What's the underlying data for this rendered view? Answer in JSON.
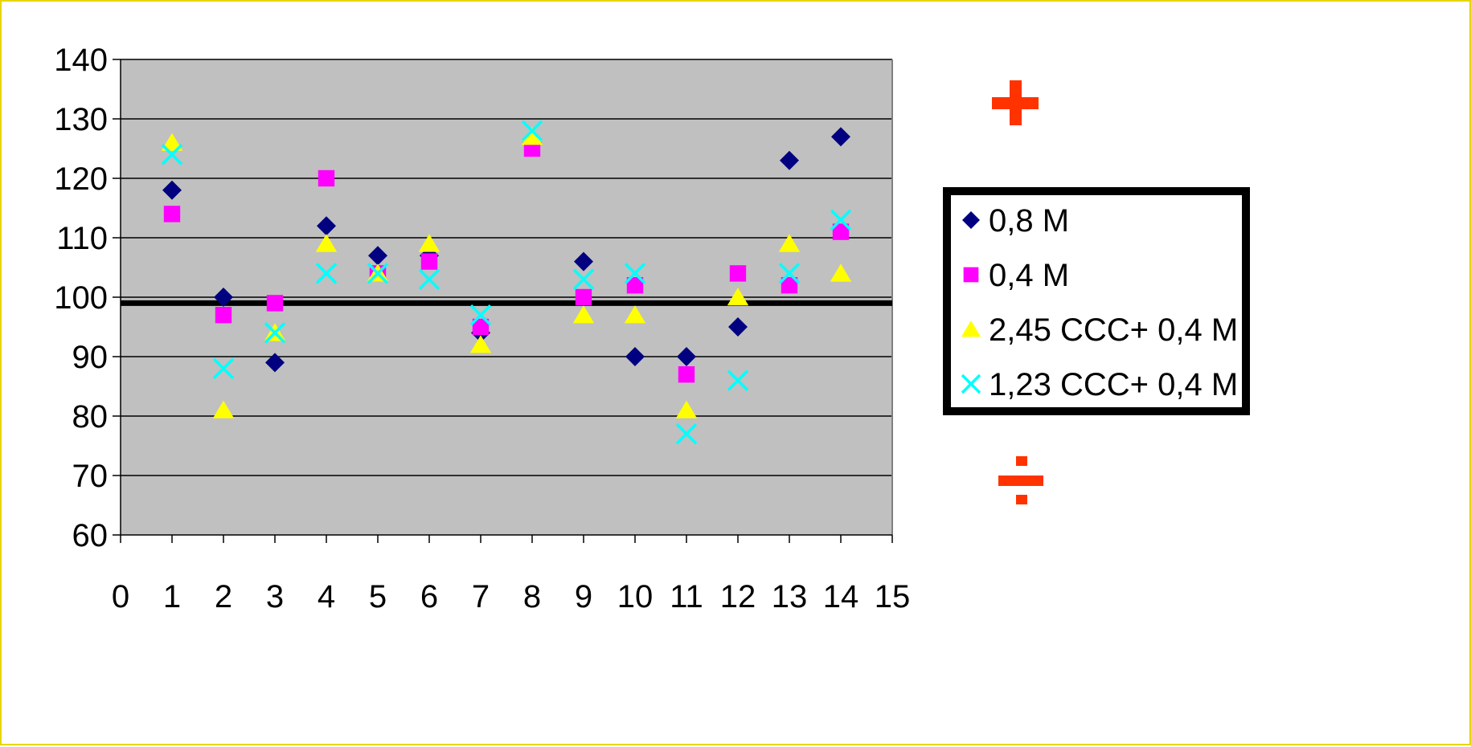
{
  "chart_data": {
    "type": "scatter",
    "title": "",
    "xlabel": "",
    "ylabel": "",
    "xlim": [
      0,
      15
    ],
    "ylim": [
      60,
      140
    ],
    "x_ticks": [
      0,
      1,
      2,
      3,
      4,
      5,
      6,
      7,
      8,
      9,
      10,
      11,
      12,
      13,
      14,
      15
    ],
    "y_ticks": [
      60,
      70,
      80,
      90,
      100,
      110,
      120,
      130,
      140
    ],
    "grid": "horizontal",
    "plot_background": "#c0c0c0",
    "reference_line": {
      "y": 99,
      "color": "#000000"
    },
    "legend_position": "right",
    "series": [
      {
        "name": "0,8 M",
        "marker": "diamond",
        "color": "#000080",
        "x": [
          1,
          2,
          3,
          4,
          5,
          6,
          7,
          8,
          9,
          10,
          11,
          12,
          13,
          14
        ],
        "y": [
          118,
          100,
          89,
          112,
          107,
          107,
          94,
          126,
          106,
          90,
          90,
          95,
          123,
          127
        ]
      },
      {
        "name": "0,4 M",
        "marker": "square",
        "color": "#ff00ff",
        "x": [
          1,
          2,
          3,
          4,
          5,
          6,
          7,
          8,
          9,
          10,
          11,
          12,
          13,
          14
        ],
        "y": [
          114,
          97,
          99,
          120,
          104,
          106,
          95,
          125,
          100,
          102,
          87,
          104,
          102,
          111
        ]
      },
      {
        "name": "2,45 CCC+ 0,4 M",
        "marker": "triangle",
        "color": "#ffff00",
        "x": [
          1,
          2,
          3,
          4,
          5,
          6,
          7,
          8,
          9,
          10,
          11,
          12,
          13,
          14
        ],
        "y": [
          126,
          81,
          94,
          109,
          104,
          109,
          92,
          127,
          97,
          97,
          81,
          100,
          109,
          104
        ]
      },
      {
        "name": "1,23 CCC+ 0,4 M",
        "marker": "x",
        "color": "#00ffff",
        "x": [
          1,
          2,
          3,
          4,
          5,
          6,
          7,
          8,
          9,
          10,
          11,
          12,
          13,
          14
        ],
        "y": [
          124,
          88,
          94,
          104,
          104,
          103,
          97,
          128,
          103,
          104,
          77,
          86,
          104,
          113
        ]
      }
    ],
    "annotations": [
      {
        "symbol": "plus",
        "color": "#ff3300"
      },
      {
        "symbol": "divide",
        "color": "#ff3300"
      }
    ]
  }
}
